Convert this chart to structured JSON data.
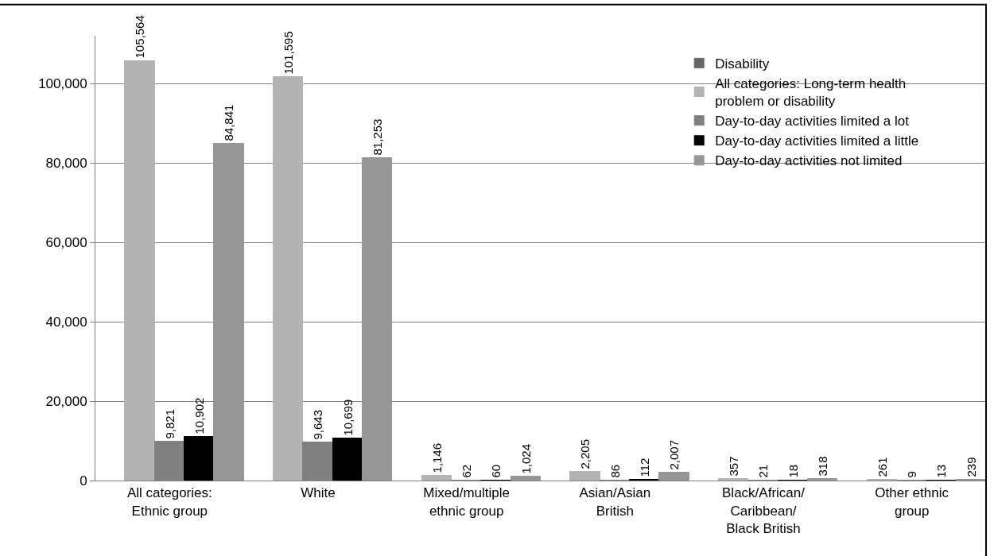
{
  "chart_data": {
    "type": "bar",
    "categories": [
      "All categories:\nEthnic group",
      "White",
      "Mixed/multiple\nethnic group",
      "Asian/Asian\nBritish",
      "Black/African/\nCaribbean/\nBlack British",
      "Other ethnic\ngroup"
    ],
    "series": [
      {
        "name": "Disability",
        "color": "#666666",
        "values": [
          null,
          null,
          null,
          null,
          null,
          null
        ]
      },
      {
        "name": "All categories: Long-term health\nproblem or disability",
        "color": "#b3b3b3",
        "values": [
          105564,
          101595,
          1146,
          2205,
          357,
          261
        ],
        "value_labels": [
          "105,564",
          "101,595",
          "1,146",
          "2,205",
          "357",
          "261"
        ]
      },
      {
        "name": "Day-to-day activities limited a lot",
        "color": "#808080",
        "values": [
          9821,
          9643,
          62,
          86,
          21,
          9
        ],
        "value_labels": [
          "9,821",
          "9,643",
          "62",
          "86",
          "21",
          "9"
        ]
      },
      {
        "name": "Day-to-day activities limited a little",
        "color": "#000000",
        "values": [
          10902,
          10699,
          60,
          112,
          18,
          13
        ],
        "value_labels": [
          "10,902",
          "10,699",
          "60",
          "112",
          "18",
          "13"
        ]
      },
      {
        "name": "Day-to-day activities not limited",
        "color": "#969696",
        "values": [
          84841,
          81253,
          1024,
          2007,
          318,
          239
        ],
        "value_labels": [
          "84,841",
          "81,253",
          "1,024",
          "2,007",
          "318",
          "239"
        ]
      }
    ],
    "ylim": [
      0,
      112000
    ],
    "yticks": [
      0,
      {
        "value": 20000,
        "label": "20,000"
      },
      {
        "value": 40000,
        "label": "40,000"
      },
      {
        "value": 60000,
        "label": "60,000"
      },
      {
        "value": 80000,
        "label": "80,000"
      },
      {
        "value": 100000,
        "label": "100,000"
      }
    ],
    "grid": "y",
    "legend": "top right"
  }
}
